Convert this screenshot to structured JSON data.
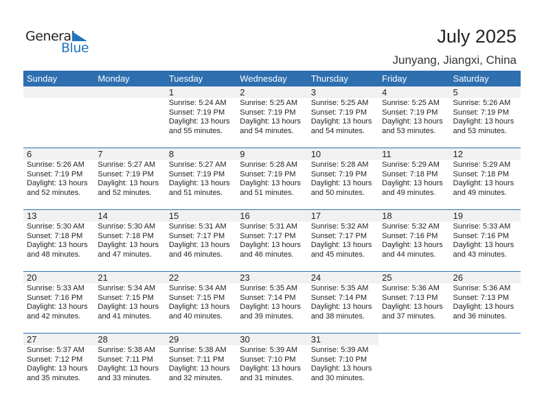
{
  "logo": {
    "line1": "General",
    "line2": "Blue"
  },
  "header": {
    "title": "July 2025",
    "location": "Junyang, Jiangxi, China"
  },
  "colors": {
    "accent": "#2e6fb0",
    "logo_blue": "#1f74bd",
    "date_band": "#f1f1f1"
  },
  "weekdays": [
    "Sunday",
    "Monday",
    "Tuesday",
    "Wednesday",
    "Thursday",
    "Friday",
    "Saturday"
  ],
  "weeks": [
    [
      null,
      null,
      {
        "day": "1",
        "sunrise": "Sunrise: 5:24 AM",
        "sunset": "Sunset: 7:19 PM",
        "daylight1": "Daylight: 13 hours",
        "daylight2": "and 55 minutes."
      },
      {
        "day": "2",
        "sunrise": "Sunrise: 5:25 AM",
        "sunset": "Sunset: 7:19 PM",
        "daylight1": "Daylight: 13 hours",
        "daylight2": "and 54 minutes."
      },
      {
        "day": "3",
        "sunrise": "Sunrise: 5:25 AM",
        "sunset": "Sunset: 7:19 PM",
        "daylight1": "Daylight: 13 hours",
        "daylight2": "and 54 minutes."
      },
      {
        "day": "4",
        "sunrise": "Sunrise: 5:25 AM",
        "sunset": "Sunset: 7:19 PM",
        "daylight1": "Daylight: 13 hours",
        "daylight2": "and 53 minutes."
      },
      {
        "day": "5",
        "sunrise": "Sunrise: 5:26 AM",
        "sunset": "Sunset: 7:19 PM",
        "daylight1": "Daylight: 13 hours",
        "daylight2": "and 53 minutes."
      }
    ],
    [
      {
        "day": "6",
        "sunrise": "Sunrise: 5:26 AM",
        "sunset": "Sunset: 7:19 PM",
        "daylight1": "Daylight: 13 hours",
        "daylight2": "and 52 minutes."
      },
      {
        "day": "7",
        "sunrise": "Sunrise: 5:27 AM",
        "sunset": "Sunset: 7:19 PM",
        "daylight1": "Daylight: 13 hours",
        "daylight2": "and 52 minutes."
      },
      {
        "day": "8",
        "sunrise": "Sunrise: 5:27 AM",
        "sunset": "Sunset: 7:19 PM",
        "daylight1": "Daylight: 13 hours",
        "daylight2": "and 51 minutes."
      },
      {
        "day": "9",
        "sunrise": "Sunrise: 5:28 AM",
        "sunset": "Sunset: 7:19 PM",
        "daylight1": "Daylight: 13 hours",
        "daylight2": "and 51 minutes."
      },
      {
        "day": "10",
        "sunrise": "Sunrise: 5:28 AM",
        "sunset": "Sunset: 7:19 PM",
        "daylight1": "Daylight: 13 hours",
        "daylight2": "and 50 minutes."
      },
      {
        "day": "11",
        "sunrise": "Sunrise: 5:29 AM",
        "sunset": "Sunset: 7:18 PM",
        "daylight1": "Daylight: 13 hours",
        "daylight2": "and 49 minutes."
      },
      {
        "day": "12",
        "sunrise": "Sunrise: 5:29 AM",
        "sunset": "Sunset: 7:18 PM",
        "daylight1": "Daylight: 13 hours",
        "daylight2": "and 49 minutes."
      }
    ],
    [
      {
        "day": "13",
        "sunrise": "Sunrise: 5:30 AM",
        "sunset": "Sunset: 7:18 PM",
        "daylight1": "Daylight: 13 hours",
        "daylight2": "and 48 minutes."
      },
      {
        "day": "14",
        "sunrise": "Sunrise: 5:30 AM",
        "sunset": "Sunset: 7:18 PM",
        "daylight1": "Daylight: 13 hours",
        "daylight2": "and 47 minutes."
      },
      {
        "day": "15",
        "sunrise": "Sunrise: 5:31 AM",
        "sunset": "Sunset: 7:17 PM",
        "daylight1": "Daylight: 13 hours",
        "daylight2": "and 46 minutes."
      },
      {
        "day": "16",
        "sunrise": "Sunrise: 5:31 AM",
        "sunset": "Sunset: 7:17 PM",
        "daylight1": "Daylight: 13 hours",
        "daylight2": "and 46 minutes."
      },
      {
        "day": "17",
        "sunrise": "Sunrise: 5:32 AM",
        "sunset": "Sunset: 7:17 PM",
        "daylight1": "Daylight: 13 hours",
        "daylight2": "and 45 minutes."
      },
      {
        "day": "18",
        "sunrise": "Sunrise: 5:32 AM",
        "sunset": "Sunset: 7:16 PM",
        "daylight1": "Daylight: 13 hours",
        "daylight2": "and 44 minutes."
      },
      {
        "day": "19",
        "sunrise": "Sunrise: 5:33 AM",
        "sunset": "Sunset: 7:16 PM",
        "daylight1": "Daylight: 13 hours",
        "daylight2": "and 43 minutes."
      }
    ],
    [
      {
        "day": "20",
        "sunrise": "Sunrise: 5:33 AM",
        "sunset": "Sunset: 7:16 PM",
        "daylight1": "Daylight: 13 hours",
        "daylight2": "and 42 minutes."
      },
      {
        "day": "21",
        "sunrise": "Sunrise: 5:34 AM",
        "sunset": "Sunset: 7:15 PM",
        "daylight1": "Daylight: 13 hours",
        "daylight2": "and 41 minutes."
      },
      {
        "day": "22",
        "sunrise": "Sunrise: 5:34 AM",
        "sunset": "Sunset: 7:15 PM",
        "daylight1": "Daylight: 13 hours",
        "daylight2": "and 40 minutes."
      },
      {
        "day": "23",
        "sunrise": "Sunrise: 5:35 AM",
        "sunset": "Sunset: 7:14 PM",
        "daylight1": "Daylight: 13 hours",
        "daylight2": "and 39 minutes."
      },
      {
        "day": "24",
        "sunrise": "Sunrise: 5:35 AM",
        "sunset": "Sunset: 7:14 PM",
        "daylight1": "Daylight: 13 hours",
        "daylight2": "and 38 minutes."
      },
      {
        "day": "25",
        "sunrise": "Sunrise: 5:36 AM",
        "sunset": "Sunset: 7:13 PM",
        "daylight1": "Daylight: 13 hours",
        "daylight2": "and 37 minutes."
      },
      {
        "day": "26",
        "sunrise": "Sunrise: 5:36 AM",
        "sunset": "Sunset: 7:13 PM",
        "daylight1": "Daylight: 13 hours",
        "daylight2": "and 36 minutes."
      }
    ],
    [
      {
        "day": "27",
        "sunrise": "Sunrise: 5:37 AM",
        "sunset": "Sunset: 7:12 PM",
        "daylight1": "Daylight: 13 hours",
        "daylight2": "and 35 minutes."
      },
      {
        "day": "28",
        "sunrise": "Sunrise: 5:38 AM",
        "sunset": "Sunset: 7:11 PM",
        "daylight1": "Daylight: 13 hours",
        "daylight2": "and 33 minutes."
      },
      {
        "day": "29",
        "sunrise": "Sunrise: 5:38 AM",
        "sunset": "Sunset: 7:11 PM",
        "daylight1": "Daylight: 13 hours",
        "daylight2": "and 32 minutes."
      },
      {
        "day": "30",
        "sunrise": "Sunrise: 5:39 AM",
        "sunset": "Sunset: 7:10 PM",
        "daylight1": "Daylight: 13 hours",
        "daylight2": "and 31 minutes."
      },
      {
        "day": "31",
        "sunrise": "Sunrise: 5:39 AM",
        "sunset": "Sunset: 7:10 PM",
        "daylight1": "Daylight: 13 hours",
        "daylight2": "and 30 minutes."
      },
      null,
      null
    ]
  ]
}
